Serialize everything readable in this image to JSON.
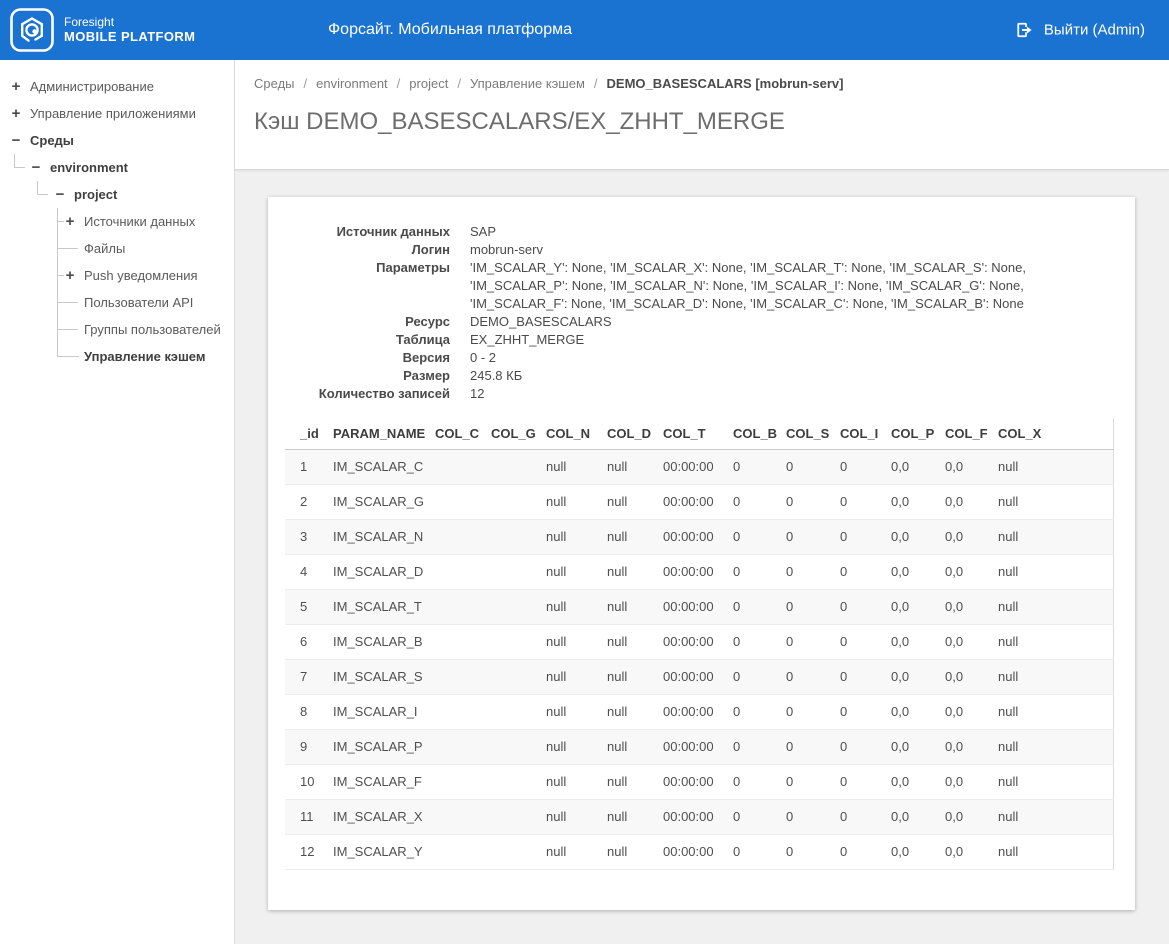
{
  "header": {
    "logo_line1": "Foresight",
    "logo_line2": "MOBILE PLATFORM",
    "title": "Форсайт. Мобильная платформа",
    "logout_label": "Выйти (Admin)"
  },
  "colors": {
    "header_bg": "#1b73d1",
    "content_bg": "#f0f0f0",
    "card_bg": "#ffffff"
  },
  "icons": {
    "plus": "+",
    "minus": "−",
    "logout": "logout-icon",
    "logo": "foresight-logo-icon"
  },
  "sidebar": {
    "items": [
      {
        "name": "administration",
        "label": "Администрирование",
        "icon": "plus",
        "level": 0,
        "bold": false,
        "connector": "none",
        "selected": false
      },
      {
        "name": "app-management",
        "label": "Управление приложениями",
        "icon": "plus",
        "level": 0,
        "bold": false,
        "connector": "none",
        "selected": false
      },
      {
        "name": "environments",
        "label": "Среды",
        "icon": "minus",
        "level": 0,
        "bold": true,
        "connector": "none",
        "selected": false
      },
      {
        "name": "environment",
        "label": "environment",
        "icon": "minus",
        "level": 1,
        "bold": true,
        "connector": "elbow",
        "selected": false
      },
      {
        "name": "project",
        "label": "project",
        "icon": "minus",
        "level": 2,
        "bold": true,
        "connector": "elbow",
        "selected": false
      },
      {
        "name": "data-sources",
        "label": "Источники данных",
        "icon": "plus",
        "level": 3,
        "bold": false,
        "connector": "tee",
        "selected": false
      },
      {
        "name": "files",
        "label": "Файлы",
        "icon": "none",
        "level": 3,
        "bold": false,
        "connector": "tee",
        "selected": false
      },
      {
        "name": "push-notifications",
        "label": "Push уведомления",
        "icon": "plus",
        "level": 3,
        "bold": false,
        "connector": "tee",
        "selected": false
      },
      {
        "name": "api-users",
        "label": "Пользователи API",
        "icon": "none",
        "level": 3,
        "bold": false,
        "connector": "tee",
        "selected": false
      },
      {
        "name": "user-groups",
        "label": "Группы пользователей",
        "icon": "none",
        "level": 3,
        "bold": false,
        "connector": "tee",
        "selected": false
      },
      {
        "name": "cache-management",
        "label": "Управление кэшем",
        "icon": "none",
        "level": 3,
        "bold": true,
        "connector": "elbow",
        "selected": true
      }
    ]
  },
  "breadcrumb": {
    "separator": "/",
    "items": [
      {
        "label": "Среды",
        "current": false
      },
      {
        "label": "environment",
        "current": false
      },
      {
        "label": "project",
        "current": false
      },
      {
        "label": "Управление кэшем",
        "current": false
      },
      {
        "label": "DEMO_BASESCALARS [mobrun-serv]",
        "current": true
      }
    ]
  },
  "page": {
    "title": "Кэш DEMO_BASESCALARS/EX_ZHHT_MERGE"
  },
  "details": {
    "rows": [
      {
        "label": "Источник данных",
        "value": "SAP"
      },
      {
        "label": "Логин",
        "value": "mobrun-serv"
      },
      {
        "label": "Параметры",
        "value": "'IM_SCALAR_Y': None, 'IM_SCALAR_X': None, 'IM_SCALAR_T': None, 'IM_SCALAR_S': None, 'IM_SCALAR_P': None, 'IM_SCALAR_N': None, 'IM_SCALAR_I': None, 'IM_SCALAR_G': None, 'IM_SCALAR_F': None, 'IM_SCALAR_D': None, 'IM_SCALAR_C': None, 'IM_SCALAR_B': None"
      },
      {
        "label": "Ресурс",
        "value": "DEMO_BASESCALARS"
      },
      {
        "label": "Таблица",
        "value": "EX_ZHHT_MERGE"
      },
      {
        "label": "Версия",
        "value": "0 - 2"
      },
      {
        "label": "Размер",
        "value": "245.8 КБ"
      },
      {
        "label": "Количество записей",
        "value": "12"
      }
    ]
  },
  "table": {
    "columns": [
      "_id",
      "PARAM_NAME",
      "COL_C",
      "COL_G",
      "COL_N",
      "COL_D",
      "COL_T",
      "COL_B",
      "COL_S",
      "COL_I",
      "COL_P",
      "COL_F",
      "COL_X"
    ],
    "rows": [
      [
        "1",
        "IM_SCALAR_C",
        "",
        "",
        "null",
        "null",
        "00:00:00",
        "0",
        "0",
        "0",
        "0,0",
        "0,0",
        "null"
      ],
      [
        "2",
        "IM_SCALAR_G",
        "",
        "",
        "null",
        "null",
        "00:00:00",
        "0",
        "0",
        "0",
        "0,0",
        "0,0",
        "null"
      ],
      [
        "3",
        "IM_SCALAR_N",
        "",
        "",
        "null",
        "null",
        "00:00:00",
        "0",
        "0",
        "0",
        "0,0",
        "0,0",
        "null"
      ],
      [
        "4",
        "IM_SCALAR_D",
        "",
        "",
        "null",
        "null",
        "00:00:00",
        "0",
        "0",
        "0",
        "0,0",
        "0,0",
        "null"
      ],
      [
        "5",
        "IM_SCALAR_T",
        "",
        "",
        "null",
        "null",
        "00:00:00",
        "0",
        "0",
        "0",
        "0,0",
        "0,0",
        "null"
      ],
      [
        "6",
        "IM_SCALAR_B",
        "",
        "",
        "null",
        "null",
        "00:00:00",
        "0",
        "0",
        "0",
        "0,0",
        "0,0",
        "null"
      ],
      [
        "7",
        "IM_SCALAR_S",
        "",
        "",
        "null",
        "null",
        "00:00:00",
        "0",
        "0",
        "0",
        "0,0",
        "0,0",
        "null"
      ],
      [
        "8",
        "IM_SCALAR_I",
        "",
        "",
        "null",
        "null",
        "00:00:00",
        "0",
        "0",
        "0",
        "0,0",
        "0,0",
        "null"
      ],
      [
        "9",
        "IM_SCALAR_P",
        "",
        "",
        "null",
        "null",
        "00:00:00",
        "0",
        "0",
        "0",
        "0,0",
        "0,0",
        "null"
      ],
      [
        "10",
        "IM_SCALAR_F",
        "",
        "",
        "null",
        "null",
        "00:00:00",
        "0",
        "0",
        "0",
        "0,0",
        "0,0",
        "null"
      ],
      [
        "11",
        "IM_SCALAR_X",
        "",
        "",
        "null",
        "null",
        "00:00:00",
        "0",
        "0",
        "0",
        "0,0",
        "0,0",
        "null"
      ],
      [
        "12",
        "IM_SCALAR_Y",
        "",
        "",
        "null",
        "null",
        "00:00:00",
        "0",
        "0",
        "0",
        "0,0",
        "0,0",
        "null"
      ]
    ]
  }
}
